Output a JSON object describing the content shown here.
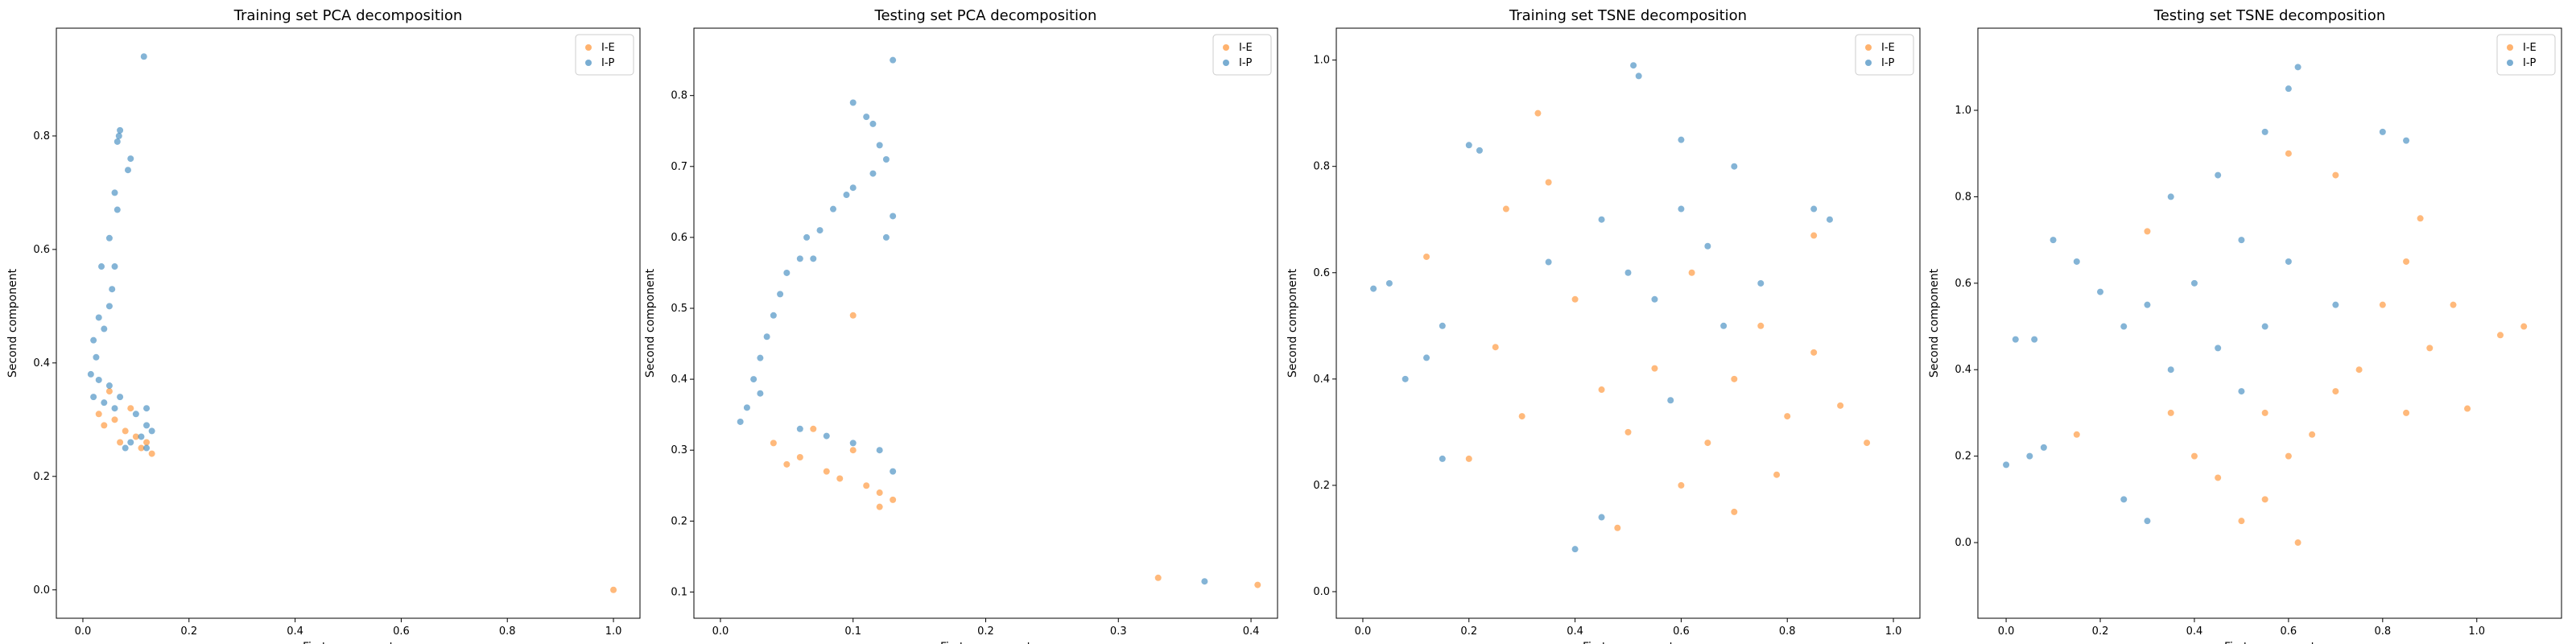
{
  "figure": {
    "background": "#ffffff",
    "legend_entries": [
      "I-E",
      "I-P"
    ]
  },
  "colors": {
    "I-E": "#ff7f0e",
    "I-P": "#1f77b4"
  },
  "chart_data": [
    {
      "type": "scatter",
      "title": "Training set PCA decomposition",
      "xlabel": "First component",
      "ylabel": "Second component",
      "xlim": [
        -0.05,
        1.05
      ],
      "ylim": [
        -0.05,
        0.99
      ],
      "xticks": [
        0.0,
        0.2,
        0.4,
        0.6,
        0.8,
        1.0
      ],
      "yticks": [
        0.0,
        0.2,
        0.4,
        0.6,
        0.8
      ],
      "legend": "top-right",
      "series": [
        {
          "name": "I-E",
          "color": "#ff7f0e",
          "points": [
            [
              1.0,
              0.0
            ],
            [
              0.06,
              0.3
            ],
            [
              0.08,
              0.28
            ],
            [
              0.1,
              0.27
            ],
            [
              0.12,
              0.26
            ],
            [
              0.04,
              0.29
            ],
            [
              0.09,
              0.32
            ],
            [
              0.11,
              0.25
            ],
            [
              0.05,
              0.35
            ],
            [
              0.07,
              0.26
            ],
            [
              0.13,
              0.24
            ],
            [
              0.03,
              0.31
            ]
          ]
        },
        {
          "name": "I-P",
          "color": "#1f77b4",
          "points": [
            [
              0.115,
              0.94
            ],
            [
              0.07,
              0.81
            ],
            [
              0.068,
              0.8
            ],
            [
              0.065,
              0.79
            ],
            [
              0.09,
              0.76
            ],
            [
              0.085,
              0.74
            ],
            [
              0.06,
              0.7
            ],
            [
              0.065,
              0.67
            ],
            [
              0.05,
              0.62
            ],
            [
              0.035,
              0.57
            ],
            [
              0.06,
              0.57
            ],
            [
              0.055,
              0.53
            ],
            [
              0.05,
              0.5
            ],
            [
              0.03,
              0.48
            ],
            [
              0.04,
              0.46
            ],
            [
              0.02,
              0.44
            ],
            [
              0.025,
              0.41
            ],
            [
              0.015,
              0.38
            ],
            [
              0.03,
              0.37
            ],
            [
              0.05,
              0.36
            ],
            [
              0.07,
              0.34
            ],
            [
              0.1,
              0.31
            ],
            [
              0.12,
              0.32
            ],
            [
              0.02,
              0.34
            ],
            [
              0.04,
              0.33
            ],
            [
              0.06,
              0.32
            ],
            [
              0.12,
              0.29
            ],
            [
              0.13,
              0.28
            ],
            [
              0.11,
              0.27
            ],
            [
              0.09,
              0.26
            ],
            [
              0.08,
              0.25
            ],
            [
              0.12,
              0.25
            ]
          ]
        }
      ]
    },
    {
      "type": "scatter",
      "title": "Testing set PCA decomposition",
      "xlabel": "First component",
      "ylabel": "Second component",
      "xlim": [
        -0.02,
        0.42
      ],
      "ylim": [
        0.063,
        0.895
      ],
      "xticks": [
        0.0,
        0.1,
        0.2,
        0.3,
        0.4
      ],
      "yticks": [
        0.1,
        0.2,
        0.3,
        0.4,
        0.5,
        0.6,
        0.7,
        0.8
      ],
      "legend": "top-right",
      "series": [
        {
          "name": "I-E",
          "color": "#ff7f0e",
          "points": [
            [
              0.33,
              0.12
            ],
            [
              0.405,
              0.11
            ],
            [
              0.1,
              0.49
            ],
            [
              0.05,
              0.28
            ],
            [
              0.08,
              0.27
            ],
            [
              0.11,
              0.25
            ],
            [
              0.12,
              0.24
            ],
            [
              0.13,
              0.23
            ],
            [
              0.09,
              0.26
            ],
            [
              0.06,
              0.29
            ],
            [
              0.1,
              0.3
            ],
            [
              0.04,
              0.31
            ],
            [
              0.12,
              0.22
            ],
            [
              0.07,
              0.33
            ]
          ]
        },
        {
          "name": "I-P",
          "color": "#1f77b4",
          "points": [
            [
              0.365,
              0.115
            ],
            [
              0.13,
              0.85
            ],
            [
              0.1,
              0.79
            ],
            [
              0.11,
              0.77
            ],
            [
              0.115,
              0.76
            ],
            [
              0.12,
              0.73
            ],
            [
              0.125,
              0.71
            ],
            [
              0.115,
              0.69
            ],
            [
              0.1,
              0.67
            ],
            [
              0.095,
              0.66
            ],
            [
              0.085,
              0.64
            ],
            [
              0.13,
              0.63
            ],
            [
              0.075,
              0.61
            ],
            [
              0.065,
              0.6
            ],
            [
              0.125,
              0.6
            ],
            [
              0.06,
              0.57
            ],
            [
              0.07,
              0.57
            ],
            [
              0.05,
              0.55
            ],
            [
              0.045,
              0.52
            ],
            [
              0.04,
              0.49
            ],
            [
              0.035,
              0.46
            ],
            [
              0.03,
              0.43
            ],
            [
              0.025,
              0.4
            ],
            [
              0.03,
              0.38
            ],
            [
              0.02,
              0.36
            ],
            [
              0.015,
              0.34
            ],
            [
              0.06,
              0.33
            ],
            [
              0.08,
              0.32
            ],
            [
              0.1,
              0.31
            ],
            [
              0.12,
              0.3
            ],
            [
              0.13,
              0.27
            ]
          ]
        }
      ]
    },
    {
      "type": "scatter",
      "title": "Training set TSNE decomposition",
      "xlabel": "First component",
      "ylabel": "Second component",
      "xlim": [
        -0.05,
        1.05
      ],
      "ylim": [
        -0.05,
        1.06
      ],
      "xticks": [
        0.0,
        0.2,
        0.4,
        0.6,
        0.8,
        1.0
      ],
      "yticks": [
        0.0,
        0.2,
        0.4,
        0.6,
        0.8,
        1.0
      ],
      "legend": "top-right",
      "series": [
        {
          "name": "I-E",
          "color": "#ff7f0e",
          "points": [
            [
              0.33,
              0.9
            ],
            [
              0.35,
              0.77
            ],
            [
              0.27,
              0.72
            ],
            [
              0.12,
              0.63
            ],
            [
              0.85,
              0.67
            ],
            [
              0.25,
              0.46
            ],
            [
              0.45,
              0.38
            ],
            [
              0.5,
              0.3
            ],
            [
              0.7,
              0.4
            ],
            [
              0.8,
              0.33
            ],
            [
              0.65,
              0.28
            ],
            [
              0.9,
              0.35
            ],
            [
              0.55,
              0.42
            ],
            [
              0.6,
              0.2
            ],
            [
              0.75,
              0.5
            ],
            [
              0.4,
              0.55
            ],
            [
              0.85,
              0.45
            ],
            [
              0.3,
              0.33
            ],
            [
              0.7,
              0.15
            ],
            [
              0.95,
              0.28
            ],
            [
              0.2,
              0.25
            ],
            [
              0.48,
              0.12
            ],
            [
              0.62,
              0.6
            ],
            [
              0.78,
              0.22
            ]
          ]
        },
        {
          "name": "I-P",
          "color": "#1f77b4",
          "points": [
            [
              0.51,
              0.99
            ],
            [
              0.52,
              0.97
            ],
            [
              0.2,
              0.84
            ],
            [
              0.22,
              0.83
            ],
            [
              0.02,
              0.57
            ],
            [
              0.05,
              0.58
            ],
            [
              0.6,
              0.72
            ],
            [
              0.65,
              0.65
            ],
            [
              0.7,
              0.8
            ],
            [
              0.55,
              0.55
            ],
            [
              0.5,
              0.6
            ],
            [
              0.45,
              0.7
            ],
            [
              0.75,
              0.58
            ],
            [
              0.85,
              0.72
            ],
            [
              0.88,
              0.7
            ],
            [
              0.15,
              0.5
            ],
            [
              0.12,
              0.44
            ],
            [
              0.08,
              0.4
            ],
            [
              0.15,
              0.25
            ],
            [
              0.4,
              0.08
            ],
            [
              0.45,
              0.14
            ],
            [
              0.6,
              0.85
            ],
            [
              0.35,
              0.62
            ],
            [
              0.68,
              0.5
            ],
            [
              0.58,
              0.36
            ]
          ]
        }
      ]
    },
    {
      "type": "scatter",
      "title": "Testing set TSNE decomposition",
      "xlabel": "First component",
      "ylabel": "Second component",
      "xlim": [
        -0.06,
        1.18
      ],
      "ylim": [
        -0.175,
        1.19
      ],
      "xticks": [
        0.0,
        0.2,
        0.4,
        0.6,
        0.8,
        1.0
      ],
      "yticks": [
        0.0,
        0.2,
        0.4,
        0.6,
        0.8,
        1.0
      ],
      "legend": "top-right",
      "series": [
        {
          "name": "I-E",
          "color": "#ff7f0e",
          "points": [
            [
              0.85,
              0.65
            ],
            [
              0.88,
              0.75
            ],
            [
              0.95,
              0.55
            ],
            [
              1.1,
              0.5
            ],
            [
              1.05,
              0.48
            ],
            [
              0.45,
              0.15
            ],
            [
              0.55,
              0.1
            ],
            [
              0.6,
              0.2
            ],
            [
              0.5,
              0.05
            ],
            [
              0.65,
              0.25
            ],
            [
              0.4,
              0.2
            ],
            [
              0.7,
              0.35
            ],
            [
              0.75,
              0.4
            ],
            [
              0.35,
              0.3
            ],
            [
              0.8,
              0.55
            ],
            [
              0.9,
              0.45
            ],
            [
              0.55,
              0.3
            ],
            [
              0.62,
              0.0
            ],
            [
              0.15,
              0.25
            ],
            [
              0.85,
              0.3
            ],
            [
              0.98,
              0.31
            ],
            [
              0.7,
              0.85
            ],
            [
              0.6,
              0.9
            ],
            [
              0.3,
              0.72
            ]
          ]
        },
        {
          "name": "I-P",
          "color": "#1f77b4",
          "points": [
            [
              0.62,
              1.1
            ],
            [
              0.6,
              1.05
            ],
            [
              0.55,
              0.95
            ],
            [
              0.45,
              0.85
            ],
            [
              0.35,
              0.8
            ],
            [
              0.3,
              0.55
            ],
            [
              0.25,
              0.5
            ],
            [
              0.2,
              0.58
            ],
            [
              0.15,
              0.65
            ],
            [
              0.1,
              0.7
            ],
            [
              0.0,
              0.18
            ],
            [
              0.05,
              0.2
            ],
            [
              0.08,
              0.22
            ],
            [
              0.02,
              0.47
            ],
            [
              0.06,
              0.47
            ],
            [
              0.4,
              0.6
            ],
            [
              0.5,
              0.7
            ],
            [
              0.6,
              0.65
            ],
            [
              0.7,
              0.55
            ],
            [
              0.55,
              0.5
            ],
            [
              0.35,
              0.4
            ],
            [
              0.45,
              0.45
            ],
            [
              0.8,
              0.95
            ],
            [
              0.85,
              0.93
            ],
            [
              0.3,
              0.05
            ],
            [
              0.25,
              0.1
            ],
            [
              0.5,
              0.35
            ]
          ]
        }
      ]
    }
  ]
}
